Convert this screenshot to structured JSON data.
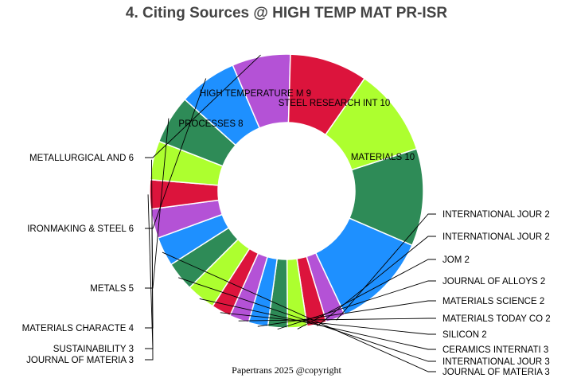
{
  "chart_data": {
    "type": "pie",
    "donut": true,
    "title": "4. Citing Sources @ HIGH TEMP MAT PR-ISR",
    "slices": [
      {
        "label": "STEEL RESEARCH INT 10",
        "value": 10,
        "color": "#2e8b57"
      },
      {
        "label": "MATERIALS 10",
        "value": 10,
        "color": "#1e90ff"
      },
      {
        "label": "INTERNATIONAL JOUR 2",
        "value": 2,
        "color": "#b452d6"
      },
      {
        "label": "INTERNATIONAL JOUR 2",
        "value": 2,
        "color": "#dc143c"
      },
      {
        "label": "JOM 2",
        "value": 2,
        "color": "#adff2f"
      },
      {
        "label": "JOURNAL OF ALLOYS  2",
        "value": 2,
        "color": "#2e8b57"
      },
      {
        "label": "MATERIALS SCIENCE  2",
        "value": 2,
        "color": "#1e90ff"
      },
      {
        "label": "MATERIALS TODAY CO 2",
        "value": 2,
        "color": "#b452d6"
      },
      {
        "label": "SILICON 2",
        "value": 2,
        "color": "#dc143c"
      },
      {
        "label": "CERAMICS INTERNATI 3",
        "value": 3,
        "color": "#adff2f"
      },
      {
        "label": "INTERNATIONAL JOUR 3",
        "value": 3,
        "color": "#2e8b57"
      },
      {
        "label": "JOURNAL OF MATERIA 3",
        "value": 3,
        "color": "#1e90ff"
      },
      {
        "label": "JOURNAL OF MATERIA 3",
        "value": 3,
        "color": "#b452d6"
      },
      {
        "label": "SUSTAINABILITY 3",
        "value": 3,
        "color": "#dc143c"
      },
      {
        "label": "MATERIALS CHARACTE 4",
        "value": 4,
        "color": "#adff2f"
      },
      {
        "label": "METALS 5",
        "value": 5,
        "color": "#2e8b57"
      },
      {
        "label": "IRONMAKING & STEEL 6",
        "value": 6,
        "color": "#1e90ff"
      },
      {
        "label": "METALLURGICAL AND  6",
        "value": 6,
        "color": "#b452d6"
      },
      {
        "label": "PROCESSES 8",
        "value": 8,
        "color": "#dc143c"
      },
      {
        "label": "HIGH TEMPERATURE M 9",
        "value": 9,
        "color": "#adff2f"
      }
    ]
  },
  "footer": "Papertrans 2025 @copyright"
}
